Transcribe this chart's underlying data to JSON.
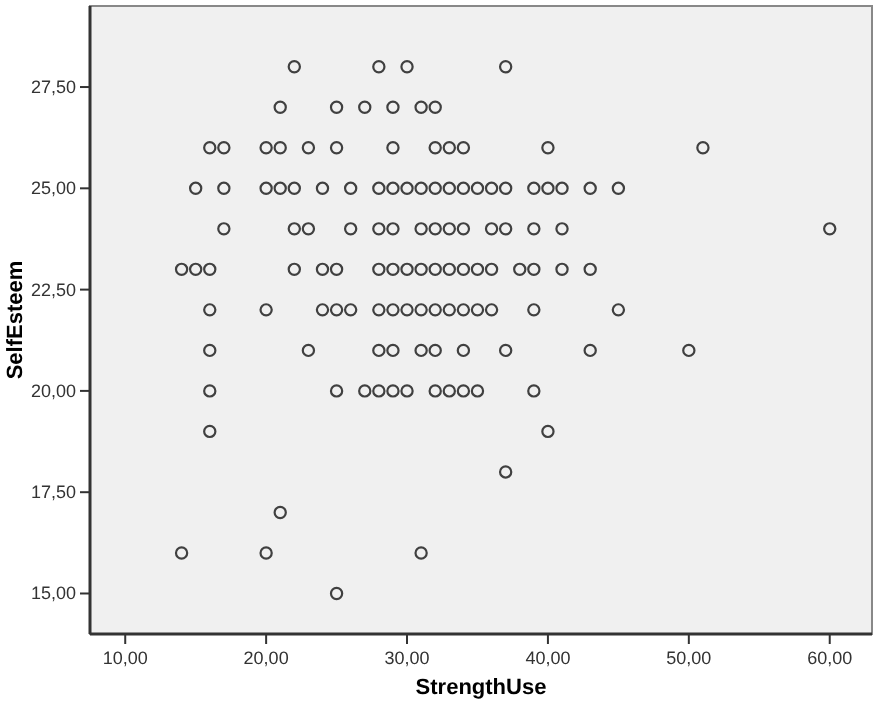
{
  "chart_data": {
    "type": "scatter",
    "xlabel": "StrengthUse",
    "ylabel": "SelfEsteem",
    "xlim": [
      7.5,
      63
    ],
    "ylim": [
      14,
      29.5
    ],
    "xticks": [
      {
        "value": 10,
        "label": "10,00"
      },
      {
        "value": 20,
        "label": "20,00"
      },
      {
        "value": 30,
        "label": "30,00"
      },
      {
        "value": 40,
        "label": "40,00"
      },
      {
        "value": 50,
        "label": "50,00"
      },
      {
        "value": 60,
        "label": "60,00"
      }
    ],
    "yticks": [
      {
        "value": 15,
        "label": "15,00"
      },
      {
        "value": 17.5,
        "label": "17,50"
      },
      {
        "value": 20,
        "label": "20,00"
      },
      {
        "value": 22.5,
        "label": "22,50"
      },
      {
        "value": 25,
        "label": "25,00"
      },
      {
        "value": 27.5,
        "label": "27,50"
      }
    ],
    "grid": false,
    "marker": "circle",
    "series": [
      {
        "color": "#404040",
        "x": [
          22,
          28,
          30,
          37,
          21,
          25,
          27,
          29,
          31,
          32,
          16,
          17,
          20,
          21,
          23,
          25,
          29,
          32,
          33,
          34,
          40,
          51,
          15,
          17,
          20,
          21,
          22,
          24,
          26,
          28,
          29,
          30,
          31,
          32,
          33,
          34,
          35,
          36,
          37,
          39,
          40,
          41,
          43,
          45,
          17,
          22,
          23,
          26,
          28,
          29,
          31,
          32,
          33,
          34,
          36,
          37,
          39,
          41,
          60,
          14,
          15,
          16,
          22,
          24,
          25,
          28,
          29,
          30,
          31,
          32,
          33,
          34,
          35,
          36,
          38,
          39,
          41,
          43,
          16,
          20,
          24,
          25,
          26,
          28,
          29,
          30,
          31,
          32,
          33,
          34,
          35,
          36,
          39,
          45,
          16,
          23,
          28,
          29,
          31,
          32,
          34,
          37,
          43,
          50,
          16,
          25,
          27,
          28,
          29,
          30,
          32,
          33,
          34,
          35,
          39,
          16,
          40,
          37,
          21,
          14,
          20,
          31,
          25
        ],
        "values": [
          28,
          28,
          28,
          28,
          27,
          27,
          27,
          27,
          27,
          27,
          26,
          26,
          26,
          26,
          26,
          26,
          26,
          26,
          26,
          26,
          26,
          26,
          25,
          25,
          25,
          25,
          25,
          25,
          25,
          25,
          25,
          25,
          25,
          25,
          25,
          25,
          25,
          25,
          25,
          25,
          25,
          25,
          25,
          25,
          24,
          24,
          24,
          24,
          24,
          24,
          24,
          24,
          24,
          24,
          24,
          24,
          24,
          24,
          24,
          23,
          23,
          23,
          23,
          23,
          23,
          23,
          23,
          23,
          23,
          23,
          23,
          23,
          23,
          23,
          23,
          23,
          23,
          23,
          22,
          22,
          22,
          22,
          22,
          22,
          22,
          22,
          22,
          22,
          22,
          22,
          22,
          22,
          22,
          22,
          21,
          21,
          21,
          21,
          21,
          21,
          21,
          21,
          21,
          21,
          20,
          20,
          20,
          20,
          20,
          20,
          20,
          20,
          20,
          20,
          20,
          19,
          19,
          18,
          17,
          16,
          16,
          16,
          15
        ]
      }
    ]
  }
}
